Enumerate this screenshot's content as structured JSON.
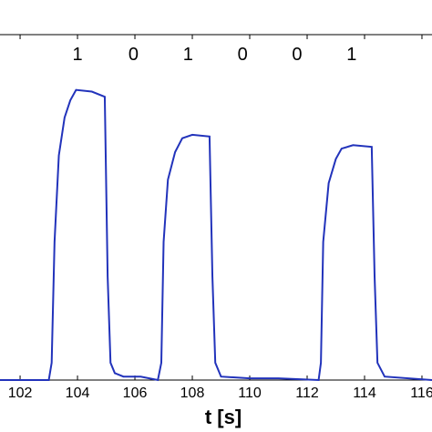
{
  "chart_data": {
    "type": "line",
    "xlabel": "t [s]",
    "xlim": [
      101.3,
      116.35
    ],
    "ylim": [
      0,
      1
    ],
    "xticks": [
      102,
      104,
      106,
      108,
      110,
      112,
      114,
      116
    ],
    "annotations": [
      {
        "text": "1",
        "x": 104.0,
        "y": 0.94
      },
      {
        "text": "0",
        "x": 105.95,
        "y": 0.94
      },
      {
        "text": "1",
        "x": 107.85,
        "y": 0.94
      },
      {
        "text": "0",
        "x": 109.75,
        "y": 0.94
      },
      {
        "text": "0",
        "x": 111.65,
        "y": 0.94
      },
      {
        "text": "1",
        "x": 113.55,
        "y": 0.94
      }
    ],
    "series": [
      {
        "color": "#2233bb",
        "x": [
          101.3,
          103.0,
          103.1,
          103.2,
          103.35,
          103.55,
          103.75,
          103.95,
          104.5,
          104.95,
          105.05,
          105.15,
          105.3,
          105.6,
          106.2,
          106.8,
          106.92,
          107.0,
          107.15,
          107.4,
          107.65,
          108.0,
          108.6,
          108.7,
          108.8,
          109.0,
          110.0,
          111.0,
          112.4,
          112.48,
          112.56,
          112.75,
          113.0,
          113.2,
          113.6,
          114.25,
          114.35,
          114.45,
          114.7,
          116.35
        ],
        "values": [
          0,
          0,
          0.05,
          0.4,
          0.65,
          0.76,
          0.81,
          0.84,
          0.835,
          0.82,
          0.3,
          0.05,
          0.02,
          0.01,
          0.01,
          0,
          0.05,
          0.4,
          0.58,
          0.66,
          0.7,
          0.71,
          0.705,
          0.3,
          0.05,
          0.01,
          0.005,
          0.005,
          0,
          0.05,
          0.4,
          0.57,
          0.64,
          0.67,
          0.68,
          0.675,
          0.3,
          0.05,
          0.01,
          0
        ]
      }
    ]
  }
}
